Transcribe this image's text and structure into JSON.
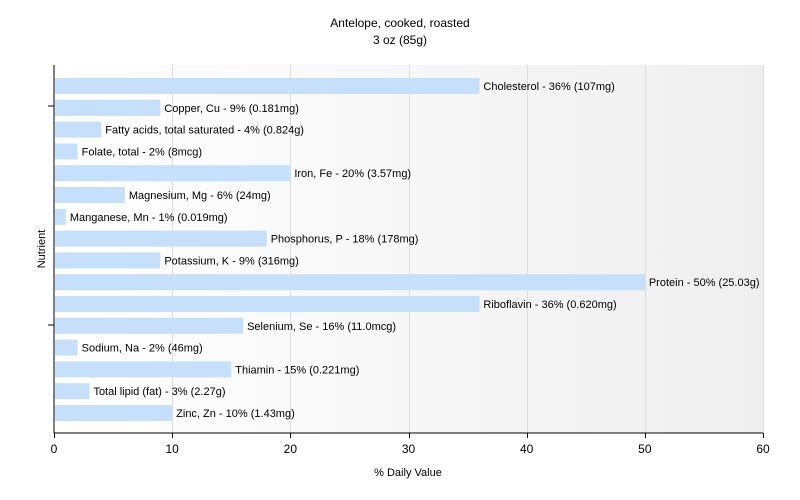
{
  "chart_data": {
    "type": "bar",
    "orientation": "horizontal",
    "title": "Antelope, cooked, roasted",
    "subtitle": "3 oz (85g)",
    "xlabel": "% Daily Value",
    "ylabel": "Nutrient",
    "xlim": [
      0,
      60
    ],
    "xticks": [
      0,
      10,
      20,
      30,
      40,
      50,
      60
    ],
    "grid": true,
    "bar_color": "#c6dffb",
    "categories": [
      "Cholesterol",
      "Copper, Cu",
      "Fatty acids, total saturated",
      "Folate, total",
      "Iron, Fe",
      "Magnesium, Mg",
      "Manganese, Mn",
      "Phosphorus, P",
      "Potassium, K",
      "Protein",
      "Riboflavin",
      "Selenium, Se",
      "Sodium, Na",
      "Thiamin",
      "Total lipid (fat)",
      "Zinc, Zn"
    ],
    "values": [
      36,
      9,
      4,
      2,
      20,
      6,
      1,
      18,
      9,
      50,
      36,
      16,
      2,
      15,
      3,
      10
    ],
    "bar_labels": [
      "Cholesterol - 36% (107mg)",
      "Copper, Cu - 9% (0.181mg)",
      "Fatty acids, total saturated - 4% (0.824g)",
      "Folate, total - 2% (8mcg)",
      "Iron, Fe - 20% (3.57mg)",
      "Magnesium, Mg - 6% (24mg)",
      "Manganese, Mn - 1% (0.019mg)",
      "Phosphorus, P - 18% (178mg)",
      "Potassium, K - 9% (316mg)",
      "Protein - 50% (25.03g)",
      "Riboflavin - 36% (0.620mg)",
      "Selenium, Se - 16% (11.0mcg)",
      "Sodium, Na - 2% (46mg)",
      "Thiamin - 15% (0.221mg)",
      "Total lipid (fat) - 3% (2.27g)",
      "Zinc, Zn - 10% (1.43mg)"
    ]
  }
}
